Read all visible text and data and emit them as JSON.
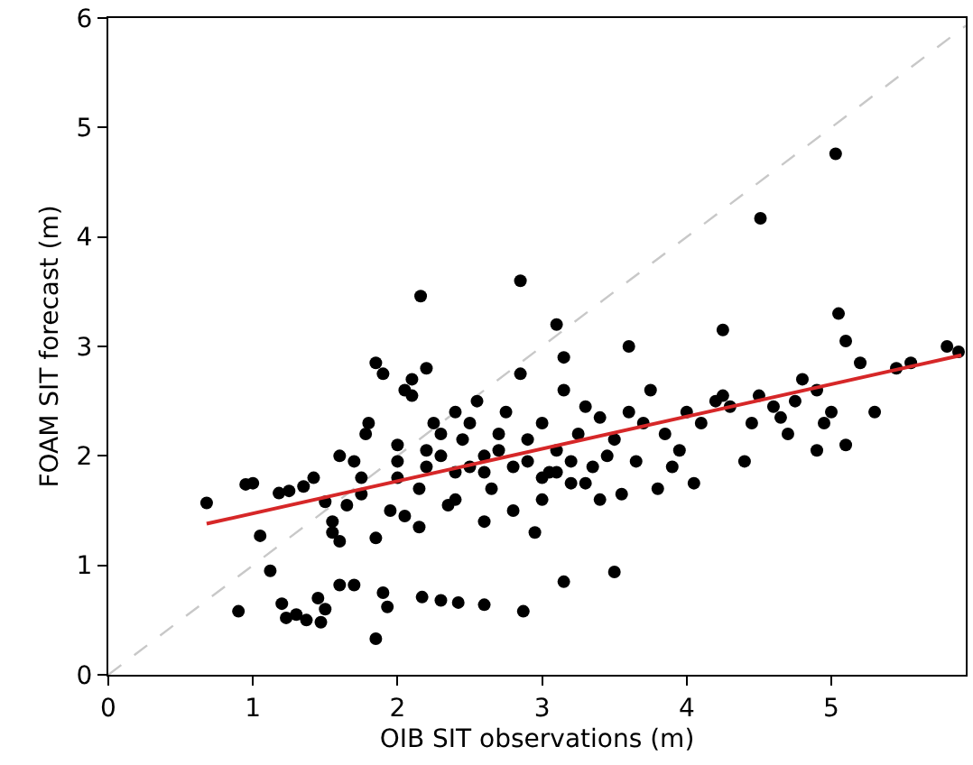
{
  "chart_data": {
    "type": "scatter",
    "xlabel": "OIB SIT observations (m)",
    "ylabel": "FOAM SIT forecast (m)",
    "xlim": [
      0,
      5.93
    ],
    "ylim": [
      0,
      6
    ],
    "xticks": [
      0,
      1,
      2,
      3,
      4,
      5
    ],
    "yticks": [
      0,
      1,
      2,
      3,
      4,
      5,
      6
    ],
    "series": [
      {
        "marker": "circle",
        "color": "#000000",
        "x": [
          5.03,
          4.51,
          2.16,
          2.85,
          0.68,
          0.95,
          1.0,
          1.05,
          1.12,
          0.9,
          1.2,
          1.23,
          1.3,
          1.37,
          1.45,
          1.47,
          1.5,
          1.6,
          1.7,
          1.85,
          1.9,
          1.93,
          2.17,
          2.3,
          2.42,
          2.6,
          2.87,
          3.15,
          3.5,
          1.18,
          1.25,
          1.35,
          1.42,
          1.5,
          1.55,
          1.55,
          1.6,
          1.65,
          1.7,
          1.75,
          1.78,
          1.8,
          1.85,
          1.9,
          1.95,
          2.0,
          2.0,
          2.05,
          2.1,
          2.15,
          2.2,
          2.25,
          2.3,
          2.35,
          2.4,
          2.45,
          2.5,
          2.55,
          2.6,
          2.65,
          2.7,
          2.75,
          2.8,
          2.85,
          2.9,
          2.95,
          3.0,
          3.05,
          3.1,
          3.15,
          3.2,
          3.25,
          3.3,
          3.35,
          3.4,
          3.45,
          3.5,
          3.55,
          3.6,
          3.65,
          3.7,
          3.75,
          3.8,
          3.85,
          3.9,
          3.95,
          4.0,
          4.05,
          4.1,
          4.2,
          4.25,
          4.3,
          4.4,
          4.45,
          4.5,
          4.6,
          4.7,
          4.75,
          4.8,
          4.9,
          4.95,
          5.0,
          5.05,
          5.1,
          5.1,
          5.2,
          5.3,
          5.45,
          5.55,
          5.8,
          5.88,
          4.25,
          3.1,
          3.15,
          2.2,
          2.1,
          1.6,
          1.75,
          3.6,
          4.65,
          4.9,
          2.0,
          2.2,
          2.4,
          2.6,
          2.8,
          3.0,
          3.2,
          2.3,
          2.5,
          2.7,
          2.9,
          3.1,
          3.3,
          2.4,
          2.6,
          2.15,
          1.85,
          2.05,
          3.0,
          3.4
        ],
        "values": [
          4.76,
          4.17,
          3.46,
          3.6,
          1.57,
          1.74,
          1.75,
          1.27,
          0.95,
          0.58,
          0.65,
          0.52,
          0.55,
          0.5,
          0.7,
          0.48,
          0.6,
          0.82,
          0.82,
          0.33,
          0.75,
          0.62,
          0.71,
          0.68,
          0.66,
          0.64,
          0.58,
          0.85,
          0.94,
          1.66,
          1.68,
          1.72,
          1.8,
          1.58,
          1.4,
          1.3,
          1.22,
          1.55,
          1.95,
          1.65,
          2.2,
          2.3,
          2.85,
          2.75,
          1.5,
          2.1,
          1.8,
          2.6,
          2.55,
          1.7,
          2.05,
          2.3,
          2.0,
          1.55,
          2.4,
          2.15,
          1.9,
          2.5,
          1.85,
          1.7,
          2.2,
          2.4,
          1.5,
          2.75,
          1.95,
          1.3,
          2.3,
          1.85,
          2.05,
          2.6,
          1.75,
          2.2,
          2.45,
          1.9,
          2.35,
          2.0,
          2.15,
          1.65,
          2.4,
          1.95,
          2.3,
          2.6,
          1.7,
          2.2,
          1.9,
          2.05,
          2.4,
          1.75,
          2.3,
          2.5,
          2.55,
          2.45,
          1.95,
          2.3,
          2.55,
          2.45,
          2.2,
          2.5,
          2.7,
          2.05,
          2.3,
          2.4,
          3.3,
          2.1,
          3.05,
          2.85,
          2.4,
          2.8,
          2.85,
          3.0,
          2.95,
          3.15,
          3.2,
          2.9,
          2.8,
          2.7,
          2.0,
          1.8,
          3.0,
          2.35,
          2.6,
          1.95,
          1.9,
          1.85,
          2.0,
          1.9,
          1.8,
          1.95,
          2.2,
          2.3,
          2.05,
          2.15,
          1.85,
          1.75,
          1.6,
          1.4,
          1.35,
          1.25,
          1.45,
          1.6,
          1.6
        ]
      },
      {
        "type": "line",
        "color": "#d62728",
        "line_style": "solid",
        "x": [
          0.68,
          5.9
        ],
        "values": [
          1.38,
          2.92
        ]
      },
      {
        "type": "line",
        "color": "#c8c8c8",
        "line_style": "dashed",
        "x": [
          0,
          5.93
        ],
        "values": [
          0,
          5.93
        ]
      }
    ]
  }
}
